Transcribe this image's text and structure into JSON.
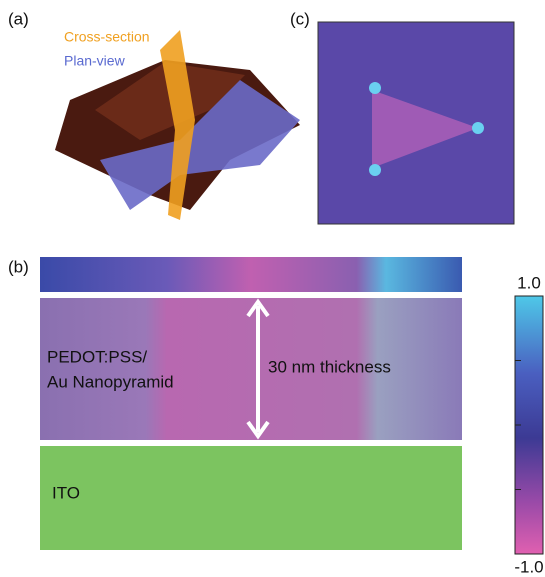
{
  "panel_a": {
    "label": "(a)",
    "cross_section": "Cross-section",
    "plan_view": "Plan-view"
  },
  "panel_b": {
    "label": "(b)",
    "layer_label_1": "PEDOT:PSS/",
    "layer_label_2": "Au Nanopyramid",
    "thickness": "30 nm thickness",
    "substrate": "ITO"
  },
  "panel_c": {
    "label": "(c)"
  },
  "colorbar": {
    "range": [
      -1,
      1
    ],
    "ticks": [
      {
        "value": 1,
        "label": "1.0"
      },
      {
        "value": -1,
        "label": "-1.0"
      }
    ],
    "minor_ticks": [
      -0.5,
      0,
      0.5
    ]
  }
}
